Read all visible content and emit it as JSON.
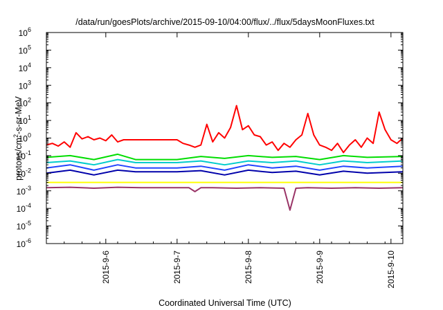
{
  "chart_data": {
    "type": "line",
    "title": "/data/run/goesPlots/archive/2015-09-10/04:00/flux/../flux/5daysMoonFluxes.txt",
    "xlabel": "Coordinated Universal Time (UTC)",
    "ylabel": "protons/cm2-s-sr-MeV",
    "ylabel_parts": {
      "pre": "protons/cm",
      "sup": "2",
      "post": "-s-sr-MeV"
    },
    "yscale": "log",
    "ylim": [
      1e-06,
      1000000.0
    ],
    "yticks": [
      {
        "base": "10",
        "exp": "-6"
      },
      {
        "base": "10",
        "exp": "-5"
      },
      {
        "base": "10",
        "exp": "-4"
      },
      {
        "base": "10",
        "exp": "-3"
      },
      {
        "base": "10",
        "exp": "-2"
      },
      {
        "base": "10",
        "exp": "-1"
      },
      {
        "base": "10",
        "exp": "0"
      },
      {
        "base": "10",
        "exp": "1"
      },
      {
        "base": "10",
        "exp": "2"
      },
      {
        "base": "10",
        "exp": "3"
      },
      {
        "base": "10",
        "exp": "4"
      },
      {
        "base": "10",
        "exp": "5"
      },
      {
        "base": "10",
        "exp": "6"
      }
    ],
    "xlim": [
      "2015-09-05T04:00",
      "2015-09-10T04:00"
    ],
    "xticks": [
      "2015-9-6",
      "2015-9-7",
      "2015-9-8",
      "2015-9-9",
      "2015-9-10"
    ],
    "grid": false,
    "legend": "none",
    "series": [
      {
        "color": "#ff0000",
        "x": [
          "2015-09-05T04:00",
          "2015-09-05T06:00",
          "2015-09-05T08:00",
          "2015-09-05T10:00",
          "2015-09-05T12:00",
          "2015-09-05T14:00",
          "2015-09-05T16:00",
          "2015-09-05T18:00",
          "2015-09-05T20:00",
          "2015-09-05T22:00",
          "2015-09-06T00:00",
          "2015-09-06T02:00",
          "2015-09-06T04:00",
          "2015-09-06T06:00",
          "2015-09-06T08:00",
          "2015-09-06T10:00",
          "2015-09-06T14:00",
          "2015-09-06T20:00",
          "2015-09-07T00:00",
          "2015-09-07T02:00",
          "2015-09-07T04:00",
          "2015-09-07T06:00",
          "2015-09-07T08:00",
          "2015-09-07T10:00",
          "2015-09-07T12:00",
          "2015-09-07T14:00",
          "2015-09-07T16:00",
          "2015-09-07T18:00",
          "2015-09-07T20:00",
          "2015-09-07T22:00",
          "2015-09-08T00:00",
          "2015-09-08T02:00",
          "2015-09-08T04:00",
          "2015-09-08T06:00",
          "2015-09-08T08:00",
          "2015-09-08T10:00",
          "2015-09-08T12:00",
          "2015-09-08T14:00",
          "2015-09-08T16:00",
          "2015-09-08T18:00",
          "2015-09-08T20:00",
          "2015-09-08T22:00",
          "2015-09-09T00:00",
          "2015-09-09T02:00",
          "2015-09-09T04:00",
          "2015-09-09T06:00",
          "2015-09-09T08:00",
          "2015-09-09T10:00",
          "2015-09-09T12:00",
          "2015-09-09T14:00",
          "2015-09-09T16:00",
          "2015-09-09T18:00",
          "2015-09-09T20:00",
          "2015-09-09T22:00",
          "2015-09-10T00:00",
          "2015-09-10T02:00",
          "2015-09-10T04:00"
        ],
        "y": [
          0.4,
          0.5,
          0.35,
          0.6,
          0.3,
          2.0,
          0.9,
          1.2,
          0.8,
          1.0,
          0.7,
          1.5,
          0.6,
          0.8,
          0.8,
          0.8,
          0.8,
          0.8,
          0.8,
          0.5,
          0.4,
          0.3,
          0.4,
          6.0,
          0.6,
          2.0,
          1.0,
          4.0,
          70.0,
          3.0,
          5.0,
          1.5,
          1.2,
          0.4,
          0.6,
          0.2,
          0.5,
          0.3,
          0.8,
          1.5,
          25.0,
          1.5,
          0.4,
          0.3,
          0.2,
          0.5,
          0.15,
          0.4,
          0.8,
          0.3,
          1.0,
          0.5,
          30.0,
          3.0,
          0.8,
          0.5,
          1.0
        ]
      },
      {
        "color": "#00dd00",
        "x": [
          "2015-09-05T04:00",
          "2015-09-05T12:00",
          "2015-09-05T20:00",
          "2015-09-06T04:00",
          "2015-09-06T10:00",
          "2015-09-06T20:00",
          "2015-09-07T00:00",
          "2015-09-07T08:00",
          "2015-09-07T16:00",
          "2015-09-08T00:00",
          "2015-09-08T08:00",
          "2015-09-08T16:00",
          "2015-09-09T00:00",
          "2015-09-09T08:00",
          "2015-09-09T16:00",
          "2015-09-10T04:00"
        ],
        "y": [
          0.08,
          0.1,
          0.06,
          0.12,
          0.06,
          0.06,
          0.06,
          0.09,
          0.07,
          0.1,
          0.08,
          0.09,
          0.06,
          0.1,
          0.08,
          0.09
        ]
      },
      {
        "color": "#00cccc",
        "x": [
          "2015-09-05T04:00",
          "2015-09-05T12:00",
          "2015-09-05T20:00",
          "2015-09-06T04:00",
          "2015-09-06T10:00",
          "2015-09-06T20:00",
          "2015-09-07T00:00",
          "2015-09-07T08:00",
          "2015-09-07T16:00",
          "2015-09-08T00:00",
          "2015-09-08T08:00",
          "2015-09-08T16:00",
          "2015-09-09T00:00",
          "2015-09-09T08:00",
          "2015-09-09T16:00",
          "2015-09-10T04:00"
        ],
        "y": [
          0.04,
          0.05,
          0.03,
          0.06,
          0.04,
          0.04,
          0.04,
          0.05,
          0.03,
          0.05,
          0.04,
          0.05,
          0.03,
          0.05,
          0.04,
          0.05
        ]
      },
      {
        "color": "#2244ff",
        "x": [
          "2015-09-05T04:00",
          "2015-09-05T12:00",
          "2015-09-05T20:00",
          "2015-09-06T04:00",
          "2015-09-06T10:00",
          "2015-09-06T20:00",
          "2015-09-07T00:00",
          "2015-09-07T08:00",
          "2015-09-07T16:00",
          "2015-09-08T00:00",
          "2015-09-08T08:00",
          "2015-09-08T16:00",
          "2015-09-09T00:00",
          "2015-09-09T08:00",
          "2015-09-09T16:00",
          "2015-09-10T04:00"
        ],
        "y": [
          0.02,
          0.03,
          0.015,
          0.03,
          0.02,
          0.02,
          0.02,
          0.025,
          0.015,
          0.03,
          0.02,
          0.025,
          0.015,
          0.025,
          0.02,
          0.025
        ]
      },
      {
        "color": "#0000aa",
        "x": [
          "2015-09-05T04:00",
          "2015-09-05T12:00",
          "2015-09-05T20:00",
          "2015-09-06T04:00",
          "2015-09-06T10:00",
          "2015-09-06T20:00",
          "2015-09-07T00:00",
          "2015-09-07T08:00",
          "2015-09-07T16:00",
          "2015-09-08T00:00",
          "2015-09-08T08:00",
          "2015-09-08T16:00",
          "2015-09-09T00:00",
          "2015-09-09T08:00",
          "2015-09-09T16:00",
          "2015-09-10T04:00"
        ],
        "y": [
          0.01,
          0.015,
          0.008,
          0.015,
          0.012,
          0.012,
          0.012,
          0.014,
          0.008,
          0.015,
          0.011,
          0.013,
          0.008,
          0.013,
          0.01,
          0.012
        ]
      },
      {
        "color": "#ffff00",
        "x": [
          "2015-09-05T04:00",
          "2015-09-06T04:00",
          "2015-09-07T04:00",
          "2015-09-08T04:00",
          "2015-09-09T04:00",
          "2015-09-10T04:00"
        ],
        "y": [
          0.003,
          0.003,
          0.003,
          0.003,
          0.003,
          0.003
        ]
      },
      {
        "color": "#993366",
        "x": [
          "2015-09-05T04:00",
          "2015-09-05T12:00",
          "2015-09-05T20:00",
          "2015-09-06T04:00",
          "2015-09-06T12:00",
          "2015-09-06T20:00",
          "2015-09-07T04:00",
          "2015-09-07T06:00",
          "2015-09-07T08:00",
          "2015-09-07T12:00",
          "2015-09-07T20:00",
          "2015-09-08T04:00",
          "2015-09-08T12:00",
          "2015-09-08T14:00",
          "2015-09-08T16:00",
          "2015-09-08T20:00",
          "2015-09-09T04:00",
          "2015-09-09T12:00",
          "2015-09-09T20:00",
          "2015-09-10T04:00"
        ],
        "y": [
          0.0015,
          0.0016,
          0.0014,
          0.0016,
          0.0015,
          0.0015,
          0.0015,
          0.0009,
          0.0015,
          0.0015,
          0.0014,
          0.0015,
          0.0014,
          8e-05,
          0.0014,
          0.0015,
          0.0014,
          0.0015,
          0.0014,
          0.0015
        ]
      }
    ]
  }
}
